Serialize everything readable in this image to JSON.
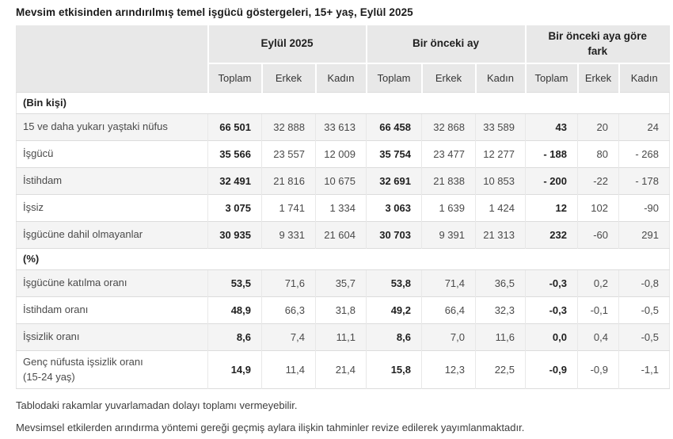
{
  "title": "Mevsim etkisinden arındırılmış temel işgücü göstergeleri, 15+ yaş, Eylül 2025",
  "colors": {
    "header_bg": "#e8e8e8",
    "stripe_bg": "#f4f4f4",
    "row_border": "#dcdcdc",
    "bold_text": "#1f1f1f",
    "normal_text": "#4a4a4a"
  },
  "table": {
    "column_groups": [
      {
        "label": "Eylül 2025"
      },
      {
        "label": "Bir önceki ay"
      },
      {
        "label": "Bir önceki aya göre fark"
      }
    ],
    "sub_headers": [
      "Toplam",
      "Erkek",
      "Kadın",
      "Toplam",
      "Erkek",
      "Kadın",
      "Toplam",
      "Erkek",
      "Kadın"
    ],
    "sections": [
      {
        "label": "(Bin kişi)",
        "rows": [
          {
            "label": "15 ve daha yukarı yaştaki nüfus",
            "values": [
              "66 501",
              "32 888",
              "33 613",
              "66 458",
              "32 868",
              "33 589",
              "43",
              "20",
              "24"
            ]
          },
          {
            "label": "İşgücü",
            "values": [
              "35 566",
              "23 557",
              "12 009",
              "35 754",
              "23 477",
              "12 277",
              "- 188",
              "80",
              "- 268"
            ]
          },
          {
            "label": "İstihdam",
            "values": [
              "32 491",
              "21 816",
              "10 675",
              "32 691",
              "21 838",
              "10 853",
              "- 200",
              "-22",
              "- 178"
            ]
          },
          {
            "label": "İşsiz",
            "values": [
              "3 075",
              "1 741",
              "1 334",
              "3 063",
              "1 639",
              "1 424",
              "12",
              "102",
              "-90"
            ]
          },
          {
            "label": "İşgücüne dahil olmayanlar",
            "values": [
              "30 935",
              "9 331",
              "21 604",
              "30 703",
              "9 391",
              "21 313",
              "232",
              "-60",
              "291"
            ]
          }
        ]
      },
      {
        "label": "(%)",
        "rows": [
          {
            "label": "İşgücüne katılma oranı",
            "values": [
              "53,5",
              "71,6",
              "35,7",
              "53,8",
              "71,4",
              "36,5",
              "-0,3",
              "0,2",
              "-0,8"
            ]
          },
          {
            "label": "İstihdam oranı",
            "values": [
              "48,9",
              "66,3",
              "31,8",
              "49,2",
              "66,4",
              "32,3",
              "-0,3",
              "-0,1",
              "-0,5"
            ]
          },
          {
            "label": "İşsizlik oranı",
            "values": [
              "8,6",
              "7,4",
              "11,1",
              "8,6",
              "7,0",
              "11,6",
              "0,0",
              "0,4",
              "-0,5"
            ]
          },
          {
            "label": "Genç nüfusta işsizlik oranı",
            "label2": "(15-24 yaş)",
            "values": [
              "14,9",
              "11,4",
              "21,4",
              "15,8",
              "12,3",
              "22,5",
              "-0,9",
              "-0,9",
              "-1,1"
            ]
          }
        ]
      }
    ]
  },
  "footnotes": [
    "Tablodaki rakamlar yuvarlamadan dolayı toplamı vermeyebilir.",
    "Mevsimsel etkilerden arındırma yöntemi gereği geçmiş aylara ilişkin tahminler revize edilerek yayımlanmaktadır."
  ]
}
